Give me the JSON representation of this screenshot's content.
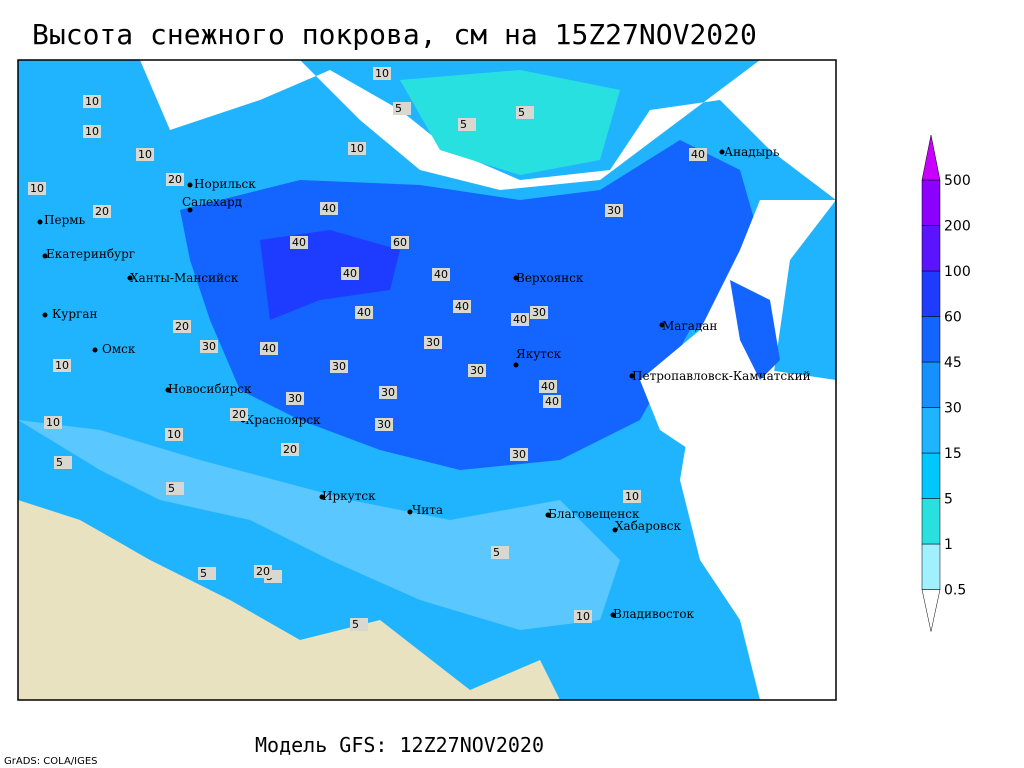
{
  "title": "Высота снежного покрова, см на 15Z27NOV2020",
  "footer": "Модель GFS: 12Z27NOV2020",
  "credit": "GrADS: COLA/IGES",
  "legend": {
    "labels": [
      0.5,
      1,
      5,
      15,
      30,
      45,
      60,
      100,
      200,
      500
    ],
    "colors": [
      "#ffffff",
      "#a0f0ff",
      "#28e0e0",
      "#00c8ff",
      "#1eb4ff",
      "#1490ff",
      "#1464ff",
      "#1e3cff",
      "#5a14ff",
      "#8c00ff",
      "#c800ff"
    ]
  },
  "cities": [
    "Норильск",
    "Салехард",
    "Пермь",
    "Екатеринбург",
    "Ханты-Мансийск",
    "Курган",
    "Омск",
    "Новосибирск",
    "Красноярск",
    "Иркутск",
    "Чита",
    "Верхоянск",
    "Якутск",
    "Магадан",
    "Анадырь",
    "Петропавловск-Камчатский",
    "Благовещенск",
    "Хабаровск",
    "Владивосток"
  ],
  "contour_labels": [
    10,
    10,
    10,
    10,
    10,
    5,
    5,
    10,
    5,
    20,
    20,
    40,
    40,
    60,
    40,
    40,
    40,
    30,
    30,
    40,
    40,
    30,
    30,
    40,
    20,
    30,
    40,
    30,
    30,
    20,
    30,
    30,
    40,
    40,
    30,
    20,
    10,
    10,
    10,
    5,
    5,
    5,
    5,
    10,
    20,
    5,
    5,
    10
  ]
}
